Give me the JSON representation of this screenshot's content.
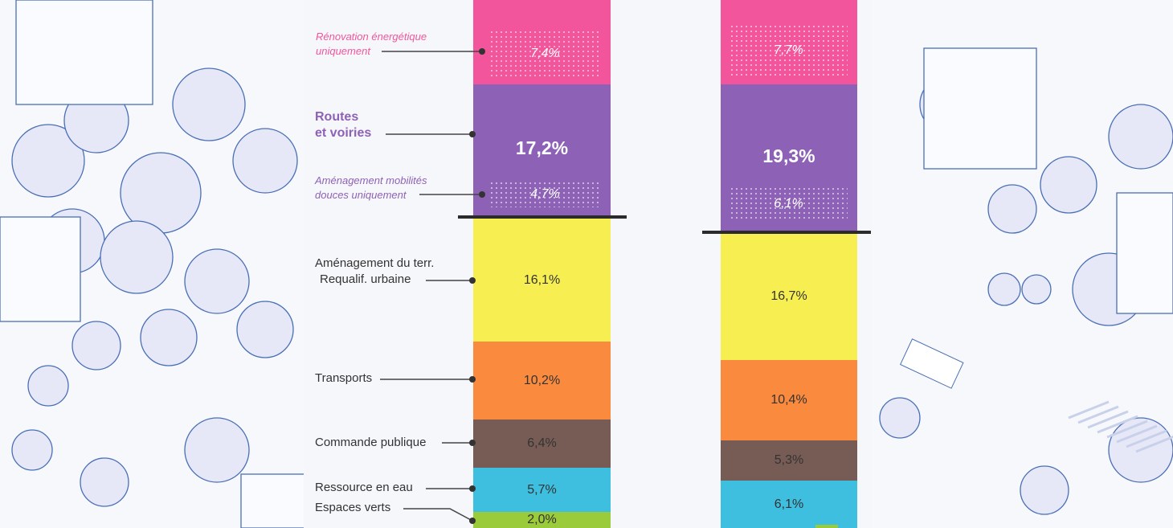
{
  "colors": {
    "renovation": "#f2559b",
    "routes": "#8d61b6",
    "amenagement": "#f7ef52",
    "transports": "#f98a3e",
    "commande": "#765c55",
    "eau": "#3ebfdf",
    "espaces_verts": "#9acb3a",
    "background_line": "#4a6fb5"
  },
  "labels": {
    "renovation_sub": [
      "Rénovation énergétique",
      "uniquement"
    ],
    "routes": [
      "Routes",
      "et voiries"
    ],
    "mobilites_sub": [
      "Aménagement mobilités",
      "douces uniquement"
    ],
    "amenagement": [
      "Aménagement du terr.",
      "Requalif. urbaine"
    ],
    "transports": "Transports",
    "commande": "Commande publique",
    "eau": "Ressource en eau",
    "espaces_verts": "Espaces verts"
  },
  "chart_data": {
    "type": "stacked-bar",
    "categories": [
      "Rénovation énergétique uniquement",
      "Routes et voiries",
      "Aménagement mobilités douces uniquement",
      "Aménagement du terr. Requalif. urbaine",
      "Transports",
      "Commande publique",
      "Ressource en eau",
      "Espaces verts"
    ],
    "series": [
      {
        "values_text": {
          "renovation_sub": "7,4%",
          "routes": "17,2%",
          "mobilites_sub": "4,7%",
          "amenagement": "16,1%",
          "transports": "10,2%",
          "commande": "6,4%",
          "eau": "5,7%",
          "espaces_verts": "2,0%"
        },
        "values": {
          "renovation_sub": 7.4,
          "routes": 17.2,
          "mobilites_sub": 4.7,
          "amenagement": 16.1,
          "transports": 10.2,
          "commande": 6.4,
          "eau": 5.7,
          "espaces_verts": 2.0
        }
      },
      {
        "values_text": {
          "renovation_sub": "7,7%",
          "routes": "19,3%",
          "mobilites_sub": "6,1%",
          "amenagement": "16,7%",
          "transports": "10,4%",
          "commande": "5,3%",
          "eau": "6,1%"
        },
        "values": {
          "renovation_sub": 7.7,
          "routes": 19.3,
          "mobilites_sub": 6.1,
          "amenagement": 16.7,
          "transports": 10.4,
          "commande": 5.3,
          "eau": 6.1
        }
      }
    ]
  }
}
